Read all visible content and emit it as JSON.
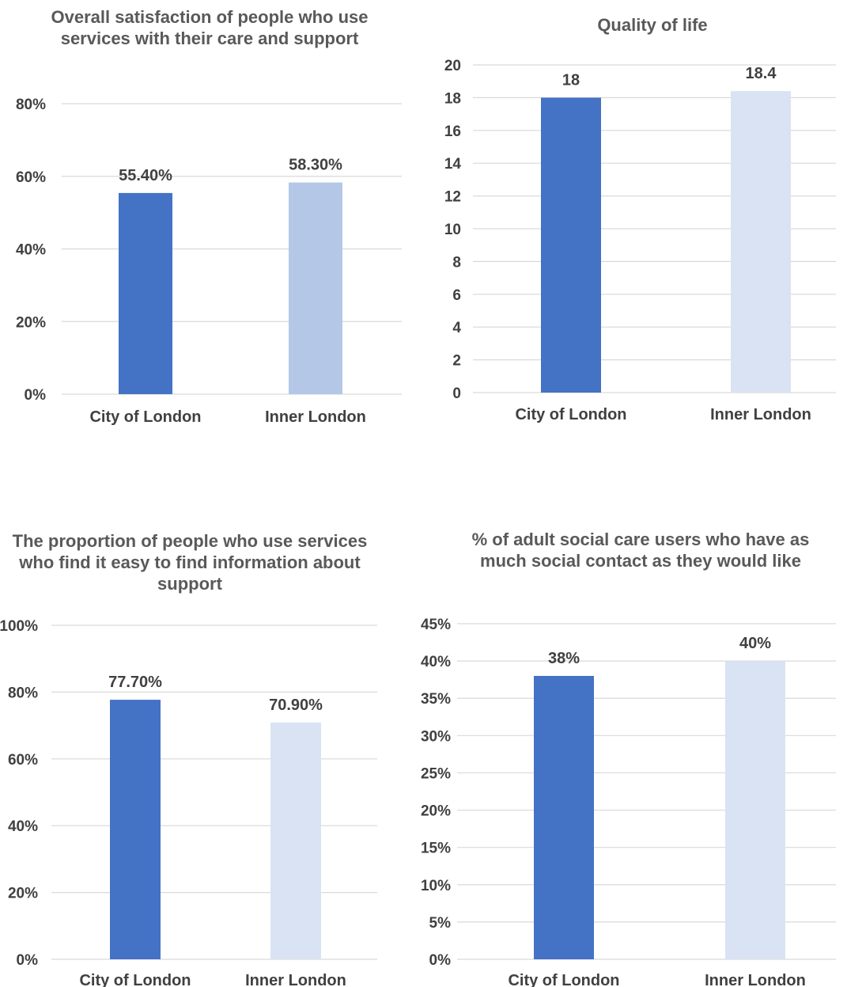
{
  "chart_data": [
    {
      "type": "bar",
      "title": "Overall satisfaction of people who use services with their care and support",
      "categories": [
        "City of London",
        "Inner London"
      ],
      "values": [
        55.4,
        58.3
      ],
      "data_labels": [
        "55.40%",
        "58.30%"
      ],
      "ylim": [
        0,
        80
      ],
      "yticks": [
        "0%",
        "20%",
        "40%",
        "60%",
        "80%"
      ],
      "colors": [
        "#4472C4",
        "#B4C7E7"
      ],
      "grid": true
    },
    {
      "type": "bar",
      "title": "Quality of life",
      "categories": [
        "City of London",
        "Inner London"
      ],
      "values": [
        18,
        18.4
      ],
      "data_labels": [
        "18",
        "18.4"
      ],
      "ylim": [
        0,
        20
      ],
      "yticks": [
        "0",
        "2",
        "4",
        "6",
        "8",
        "10",
        "12",
        "14",
        "16",
        "18",
        "20"
      ],
      "colors": [
        "#4472C4",
        "#DAE3F3"
      ],
      "grid": true
    },
    {
      "type": "bar",
      "title": "The proportion of people who use services who find it easy to find information about support",
      "categories": [
        "City of London",
        "Inner London"
      ],
      "values": [
        77.7,
        70.9
      ],
      "data_labels": [
        "77.70%",
        "70.90%"
      ],
      "ylim": [
        0,
        100
      ],
      "yticks": [
        "0%",
        "20%",
        "40%",
        "60%",
        "80%",
        "100%"
      ],
      "colors": [
        "#4472C4",
        "#DAE3F3"
      ],
      "grid": true
    },
    {
      "type": "bar",
      "title": "% of adult social care users who have as much social contact as they would like",
      "categories": [
        "City of London",
        "Inner London"
      ],
      "values": [
        38,
        40
      ],
      "data_labels": [
        "38%",
        "40%"
      ],
      "ylim": [
        0,
        45
      ],
      "yticks": [
        "0%",
        "5%",
        "10%",
        "15%",
        "20%",
        "25%",
        "30%",
        "35%",
        "40%",
        "45%"
      ],
      "colors": [
        "#4472C4",
        "#DAE3F3"
      ],
      "grid": true
    }
  ]
}
